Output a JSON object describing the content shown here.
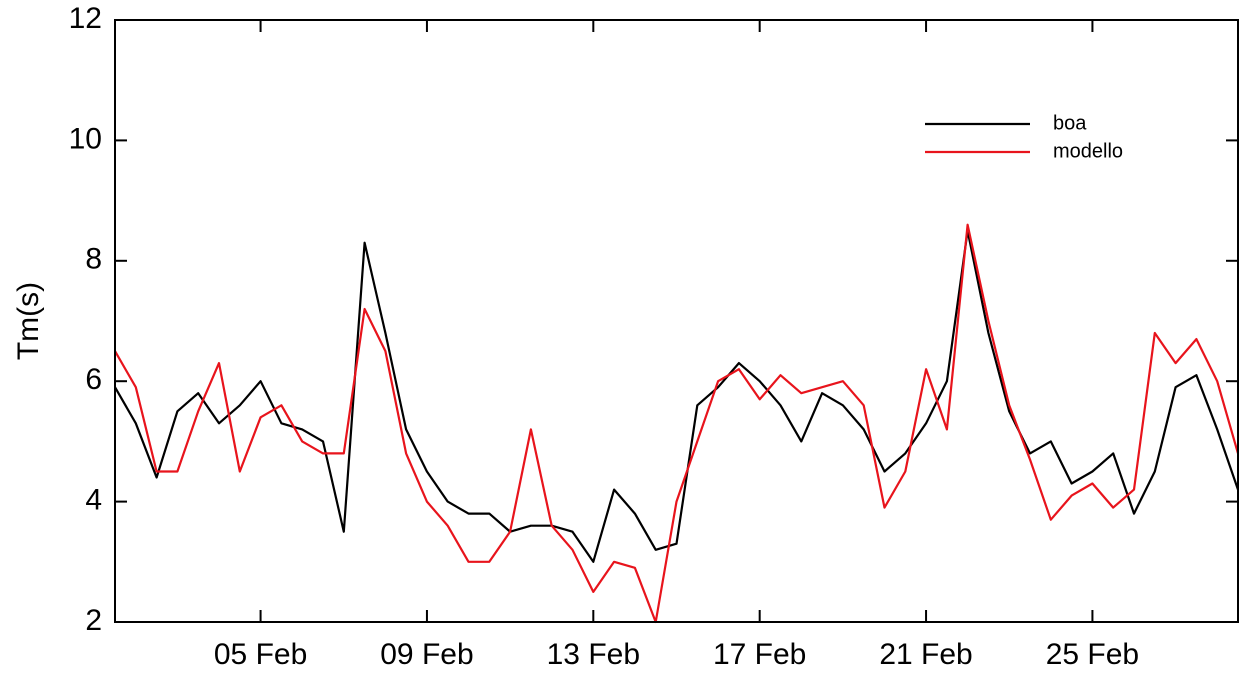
{
  "chart_data": {
    "type": "line",
    "y_label": "Tm(s)",
    "x": [
      1.5,
      2,
      2.5,
      3,
      3.5,
      4,
      4.5,
      5,
      5.5,
      6,
      6.5,
      7,
      7.5,
      8,
      8.5,
      9,
      9.5,
      10,
      10.5,
      11,
      11.5,
      12,
      12.5,
      13,
      13.5,
      14,
      14.5,
      15,
      15.5,
      16,
      16.5,
      17,
      17.5,
      18,
      18.5,
      19,
      19.5,
      20,
      20.5,
      21,
      21.5,
      22,
      22.5,
      23,
      23.5,
      24,
      24.5,
      25,
      25.5,
      26,
      26.5,
      27,
      27.5,
      28,
      28.5
    ],
    "series": [
      {
        "name": "boa",
        "color": "#000000",
        "values": [
          5.9,
          5.3,
          4.4,
          5.5,
          5.8,
          5.3,
          5.6,
          6.0,
          5.3,
          5.2,
          5.0,
          3.5,
          8.3,
          6.8,
          5.2,
          4.5,
          4.0,
          3.8,
          3.8,
          3.5,
          3.6,
          3.6,
          3.5,
          3.0,
          4.2,
          3.8,
          3.2,
          3.3,
          5.6,
          5.9,
          6.3,
          6.0,
          5.6,
          5.0,
          5.8,
          5.6,
          5.2,
          4.5,
          4.8,
          5.3,
          6.0,
          8.5,
          6.8,
          5.5,
          4.8,
          5.0,
          4.3,
          4.5,
          4.8,
          3.8,
          4.5,
          5.9,
          6.1,
          5.2,
          4.2
        ]
      },
      {
        "name": "modello",
        "color": "#e8141c",
        "values": [
          6.5,
          5.9,
          4.5,
          4.5,
          5.5,
          6.3,
          4.5,
          5.4,
          5.6,
          5.0,
          4.8,
          4.8,
          7.2,
          6.5,
          4.8,
          4.0,
          3.6,
          3.0,
          3.0,
          3.5,
          5.2,
          3.6,
          3.2,
          2.5,
          3.0,
          2.9,
          2.0,
          4.0,
          5.0,
          6.0,
          6.2,
          5.7,
          6.1,
          5.8,
          5.9,
          6.0,
          5.6,
          3.9,
          4.5,
          6.2,
          5.2,
          8.6,
          7.0,
          5.6,
          4.7,
          3.7,
          4.1,
          4.3,
          3.9,
          4.2,
          6.8,
          6.3,
          6.7,
          6.0,
          4.8
        ]
      }
    ],
    "xlim": [
      1.5,
      28.5
    ],
    "xticks": [
      {
        "value": 5,
        "label": "05 Feb"
      },
      {
        "value": 9,
        "label": "09 Feb"
      },
      {
        "value": 13,
        "label": "13 Feb"
      },
      {
        "value": 17,
        "label": "17 Feb"
      },
      {
        "value": 21,
        "label": "21 Feb"
      },
      {
        "value": 25,
        "label": "25 Feb"
      }
    ],
    "ylim": [
      2,
      12
    ],
    "yticks": [
      2,
      4,
      6,
      8,
      10,
      12
    ],
    "legend": "upper-right"
  }
}
